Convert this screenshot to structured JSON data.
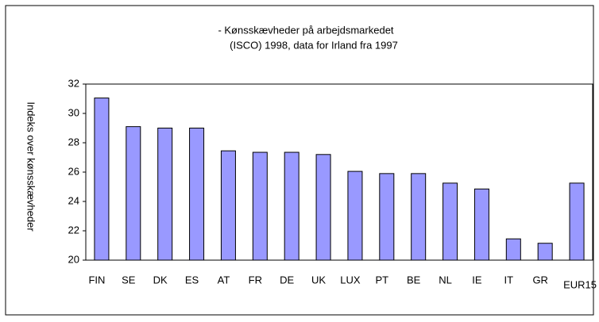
{
  "chart_data": {
    "type": "bar",
    "title": "- Kønsskævheder på arbejdsmarkedet",
    "subtitle": "(ISCO) 1998, data for Irland fra 1997",
    "y_label": "Indeks over kønsskævheder",
    "categories": [
      "FIN",
      "SE",
      "DK",
      "ES",
      "AT",
      "FR",
      "DE",
      "UK",
      "LUX",
      "PT",
      "BE",
      "NL",
      "IE",
      "IT",
      "GR",
      "EUR15"
    ],
    "values": [
      31.05,
      29.1,
      29.0,
      29.0,
      27.45,
      27.35,
      27.35,
      27.2,
      26.05,
      25.9,
      25.9,
      25.25,
      24.85,
      21.45,
      21.15,
      25.25
    ],
    "color": "#9999ff",
    "ylim": [
      20,
      32
    ],
    "yticks": [
      20,
      22,
      24,
      26,
      28,
      30,
      32
    ]
  }
}
